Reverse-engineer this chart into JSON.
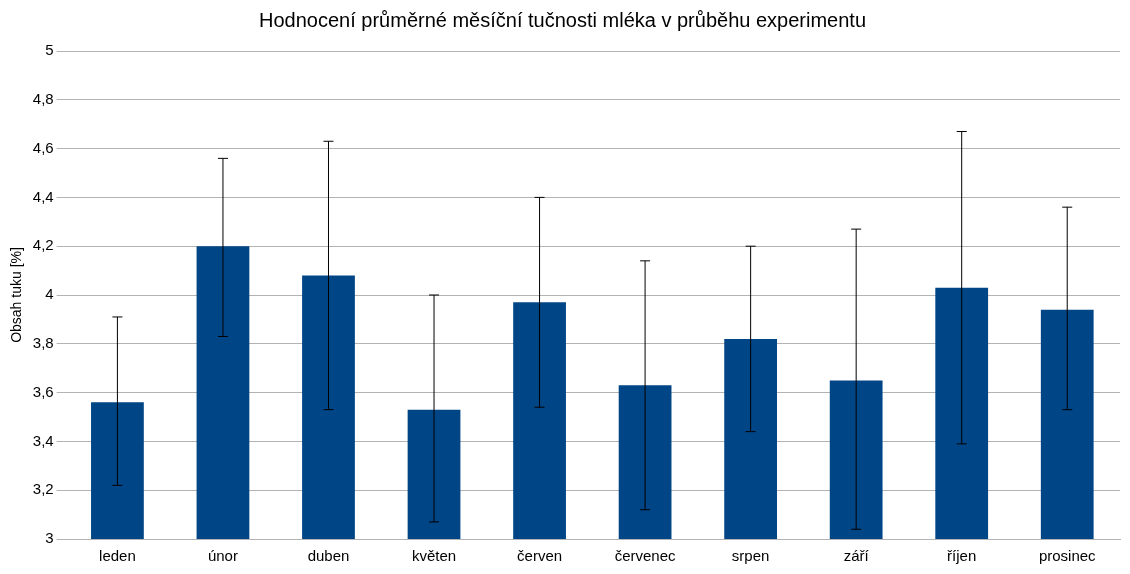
{
  "chart_data": {
    "type": "bar",
    "title": "Hodnocení průměrné měsíční tučnosti mléka v průběhu experimentu",
    "ylabel": "Obsah tuku [%]",
    "categories": [
      "leden",
      "únor",
      "duben",
      "květen",
      "červen",
      "červenec",
      "srpen",
      "září",
      "říjen",
      "prosinec"
    ],
    "values": [
      3.56,
      4.2,
      4.08,
      3.53,
      3.97,
      3.63,
      3.82,
      3.65,
      4.03,
      3.94
    ],
    "errors": [
      [
        3.22,
        3.91
      ],
      [
        3.83,
        4.56
      ],
      [
        3.53,
        4.63
      ],
      [
        3.07,
        4.0
      ],
      [
        3.54,
        4.4
      ],
      [
        3.12,
        4.14
      ],
      [
        3.44,
        4.2
      ],
      [
        3.04,
        4.27
      ],
      [
        3.39,
        4.67
      ],
      [
        3.53,
        4.36
      ]
    ],
    "color": "#004586",
    "ylim": [
      3,
      5
    ],
    "yticks": [
      3,
      {
        "value": 3.2,
        "label": "3,2"
      },
      {
        "value": 3.4,
        "label": "3,4"
      },
      {
        "value": 3.6,
        "label": "3,6"
      },
      {
        "value": 3.8,
        "label": "3,8"
      },
      4,
      {
        "value": 4.2,
        "label": "4,2"
      },
      {
        "value": 4.4,
        "label": "4,4"
      },
      {
        "value": 4.6,
        "label": "4,6"
      },
      {
        "value": 4.8,
        "label": "4,8"
      },
      5
    ],
    "grid": "y",
    "legend": false
  }
}
